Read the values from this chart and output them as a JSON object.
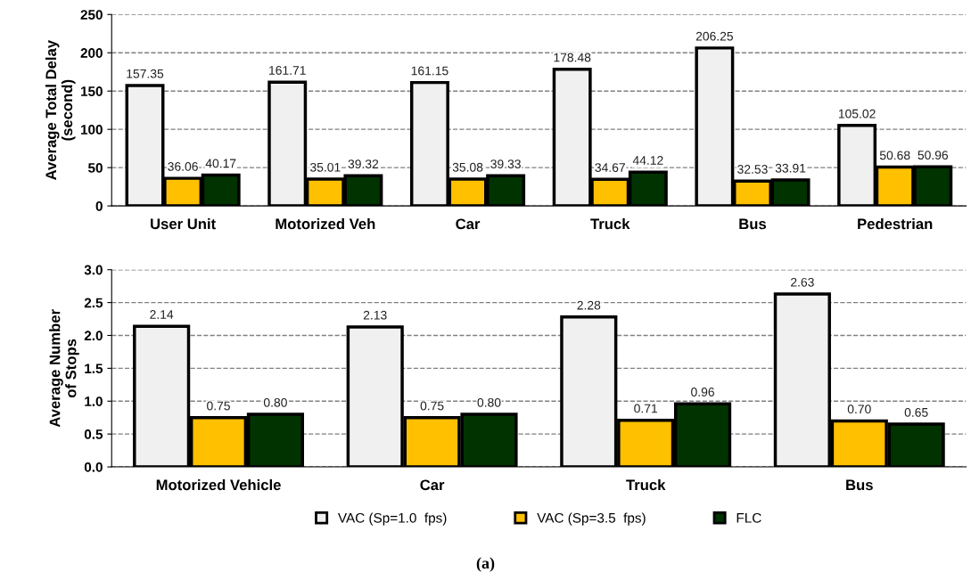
{
  "chart_data": [
    {
      "type": "bar",
      "ylabel": "Average Total Delay\n(second)",
      "categories": [
        "User Unit",
        "Motorized Veh",
        "Car",
        "Truck",
        "Bus",
        "Pedestrian"
      ],
      "series": [
        {
          "color": "#f0f0f0",
          "values": [
            157.35,
            161.71,
            161.15,
            178.48,
            206.25,
            105.02
          ],
          "value_labels": [
            "157.35",
            "161.71",
            "161.15",
            "178.48",
            "206.25",
            "105.02"
          ]
        },
        {
          "color": "#ffc000",
          "values": [
            36.06,
            35.01,
            35.08,
            34.67,
            32.53,
            50.68
          ],
          "value_labels": [
            "36.06",
            "35.01",
            "35.08",
            "34.67",
            "32.53",
            "50.68"
          ]
        },
        {
          "color": "#003300",
          "values": [
            40.17,
            39.32,
            39.33,
            44.12,
            33.91,
            50.96
          ],
          "value_labels": [
            "40.17",
            "39.32",
            "39.33",
            "44.12",
            "33.91",
            "50.96"
          ]
        }
      ],
      "ylim": [
        0,
        250
      ],
      "yticks": [
        0,
        50,
        100,
        150,
        200,
        250
      ],
      "grid": "y",
      "legend": false
    },
    {
      "type": "bar",
      "ylabel": "Average Number\nof Stops",
      "categories": [
        "Motorized Vehicle",
        "Car",
        "Truck",
        "Bus"
      ],
      "series": [
        {
          "name": "VAC (Sp=1.0  fps)",
          "color": "#f0f0f0",
          "values": [
            2.14,
            2.13,
            2.28,
            2.63
          ],
          "value_labels": [
            "2.14",
            "2.13",
            "2.28",
            "2.63"
          ]
        },
        {
          "name": "VAC (Sp=3.5  fps)",
          "color": "#ffc000",
          "values": [
            0.75,
            0.75,
            0.71,
            0.7
          ],
          "value_labels": [
            "0.75",
            "0.75",
            "0.71",
            "0.70"
          ]
        },
        {
          "name": "FLC",
          "color": "#003300",
          "values": [
            0.8,
            0.8,
            0.96,
            0.65
          ],
          "value_labels": [
            "0.80",
            "0.80",
            "0.96",
            "0.65"
          ]
        }
      ],
      "ylim": [
        0,
        3.0
      ],
      "yticks": [
        {
          "value": 0,
          "label": "0.0"
        },
        {
          "value": 0.5,
          "label": "0.5"
        },
        {
          "value": 1.0,
          "label": "1.0"
        },
        {
          "value": 1.5,
          "label": "1.5"
        },
        {
          "value": 2.0,
          "label": "2.0"
        },
        {
          "value": 2.5,
          "label": "2.5"
        },
        {
          "value": 3.0,
          "label": "3.0"
        }
      ],
      "grid": "y",
      "legend": "bottom",
      "annotations": [
        "(a)"
      ]
    }
  ]
}
